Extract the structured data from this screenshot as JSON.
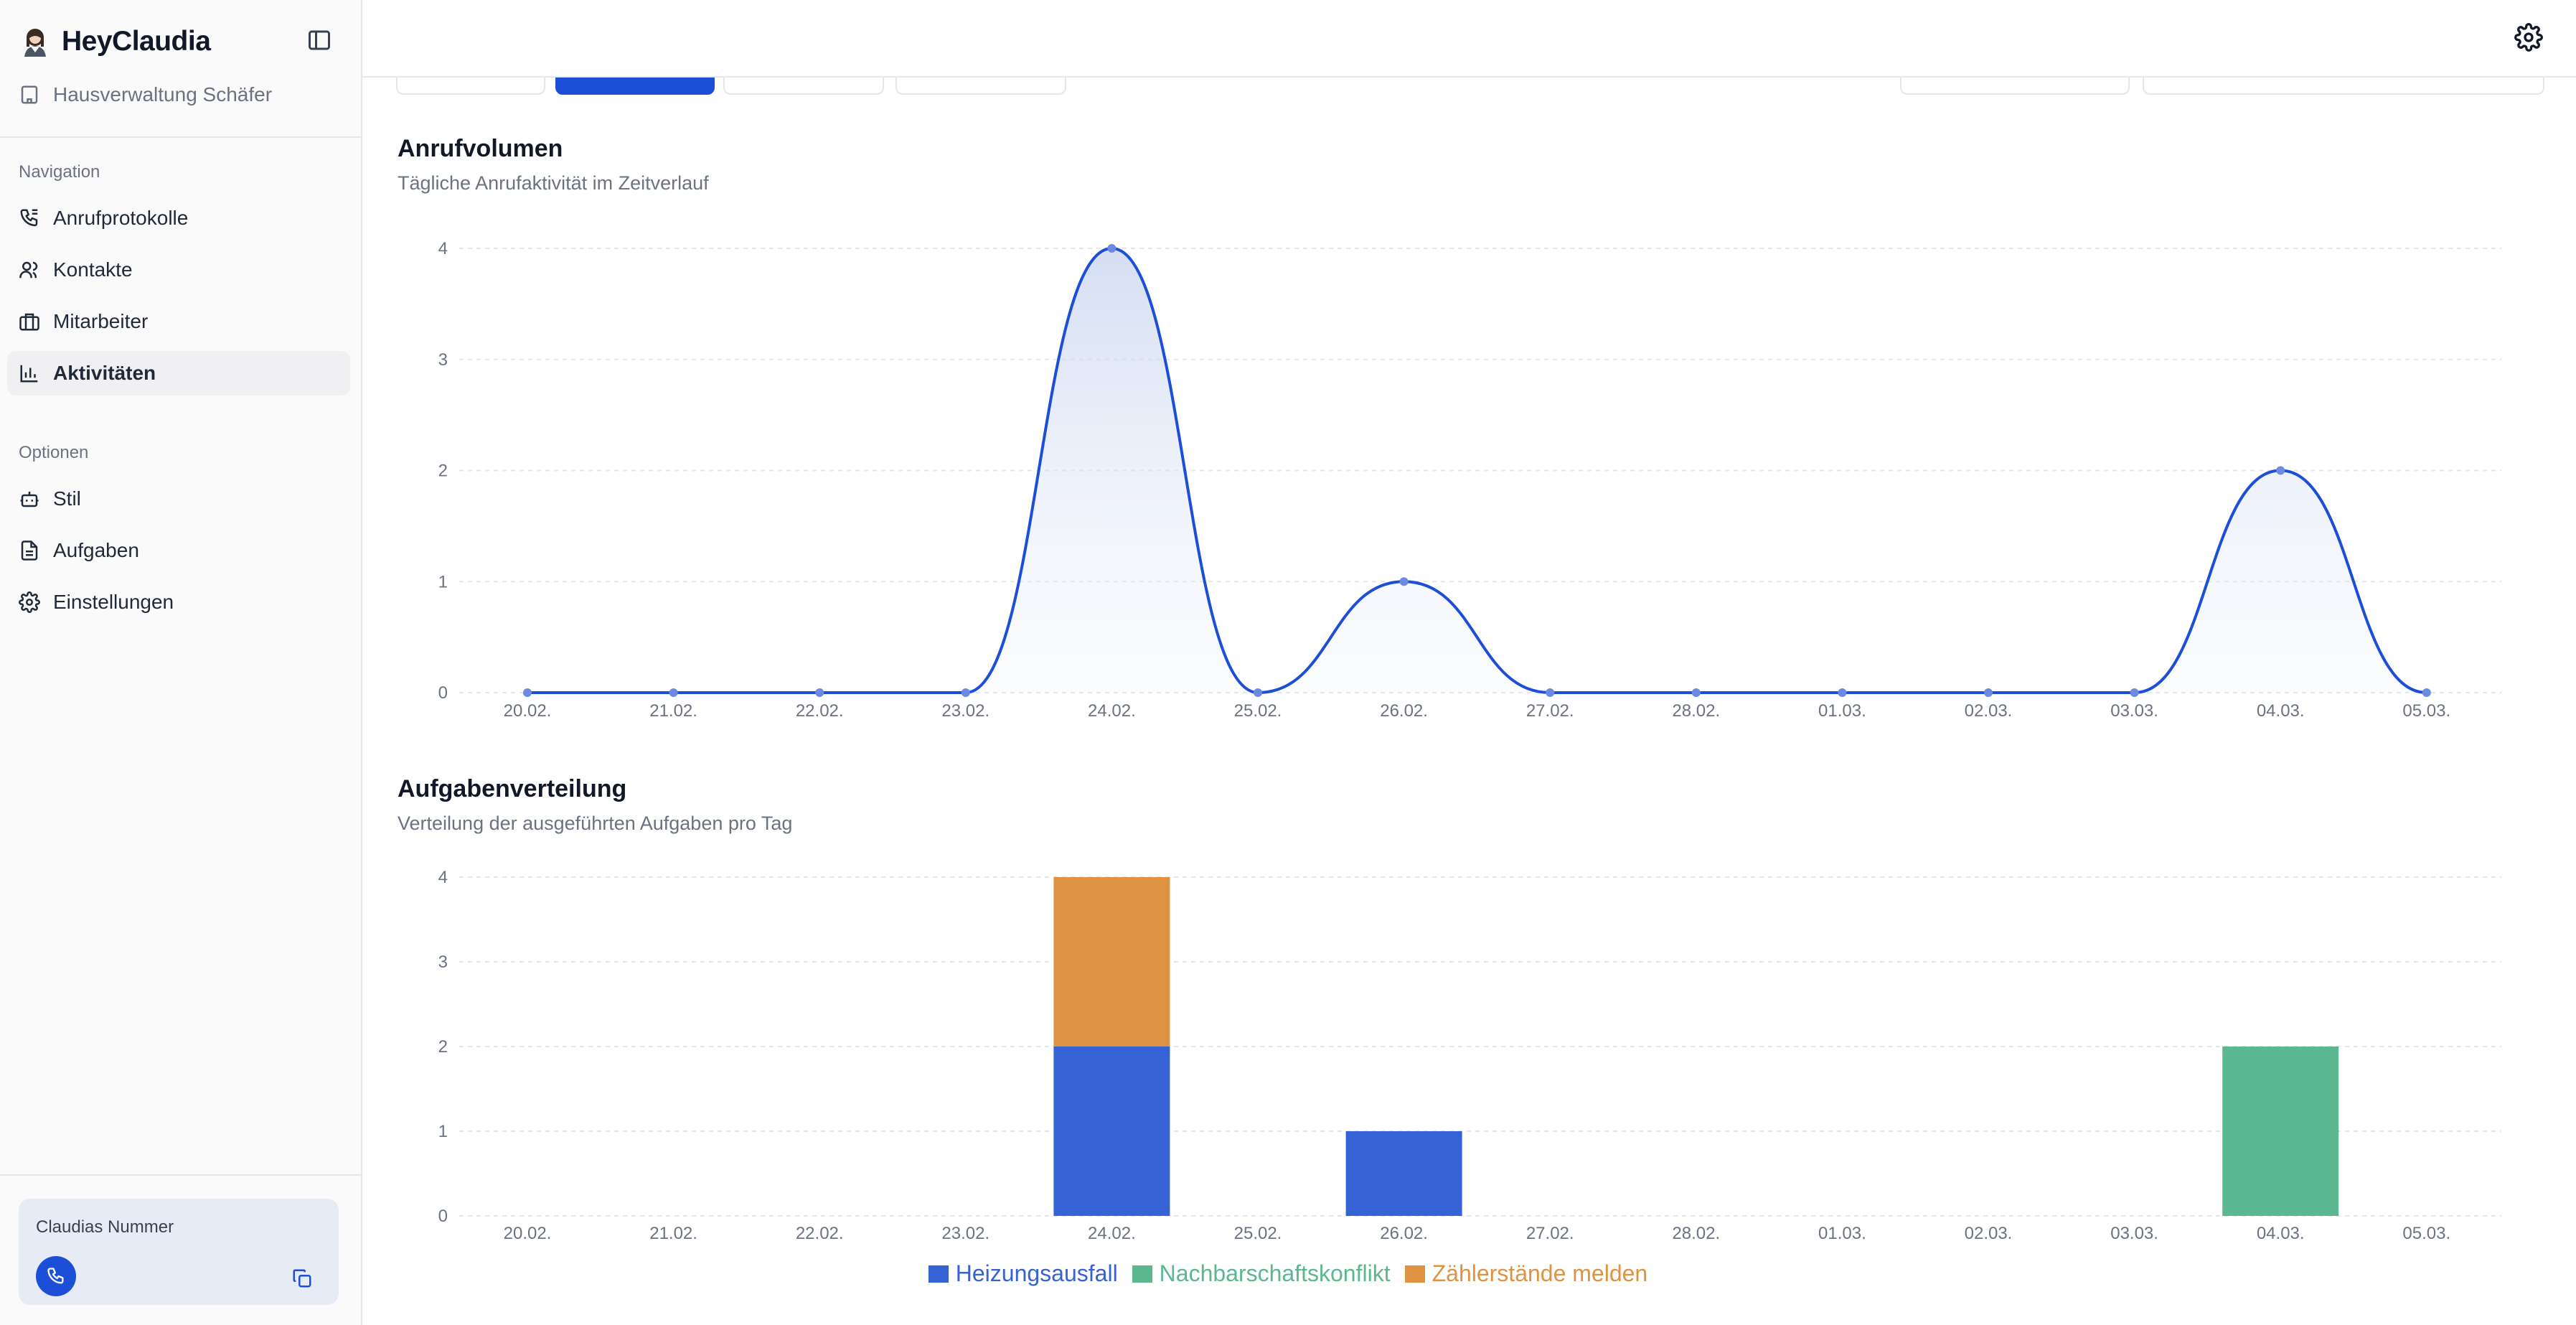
{
  "app": {
    "name": "HeyClaudia",
    "organization": "Hausverwaltung Schäfer"
  },
  "sidebar": {
    "navigation_label": "Navigation",
    "nav_items": [
      {
        "label": "Anrufprotokolle",
        "icon": "phone-log-icon"
      },
      {
        "label": "Kontakte",
        "icon": "users-icon"
      },
      {
        "label": "Mitarbeiter",
        "icon": "briefcase-icon"
      },
      {
        "label": "Aktivitäten",
        "icon": "bar-chart-icon",
        "active": true
      }
    ],
    "options_label": "Optionen",
    "option_items": [
      {
        "label": "Stil",
        "icon": "bot-icon"
      },
      {
        "label": "Aufgaben",
        "icon": "document-icon"
      },
      {
        "label": "Einstellungen",
        "icon": "gear-icon"
      }
    ],
    "number_card": {
      "label": "Claudias Nummer"
    }
  },
  "colors": {
    "accent": "#1d4ed8",
    "heizung": "#3563d6",
    "nachbar": "#5bb78f",
    "zaehler": "#de9343"
  },
  "chart_data": [
    {
      "type": "area",
      "title": "Anrufvolumen",
      "subtitle": "Tägliche Anrufaktivität im Zeitverlauf",
      "categories": [
        "20.02.",
        "21.02.",
        "22.02.",
        "23.02.",
        "24.02.",
        "25.02.",
        "26.02.",
        "27.02.",
        "28.02.",
        "01.03.",
        "02.03.",
        "03.03.",
        "04.03.",
        "05.03."
      ],
      "values": [
        0,
        0,
        0,
        0,
        4,
        0,
        1,
        0,
        0,
        0,
        0,
        0,
        2,
        0
      ],
      "ylim": [
        0,
        4
      ],
      "yticks": [
        0,
        1,
        2,
        3,
        4
      ],
      "grid": true
    },
    {
      "type": "bar",
      "stacked": true,
      "title": "Aufgabenverteilung",
      "subtitle": "Verteilung der ausgeführten Aufgaben pro Tag",
      "categories": [
        "20.02.",
        "21.02.",
        "22.02.",
        "23.02.",
        "24.02.",
        "25.02.",
        "26.02.",
        "27.02.",
        "28.02.",
        "01.03.",
        "02.03.",
        "03.03.",
        "04.03.",
        "05.03."
      ],
      "series": [
        {
          "name": "Heizungsausfall",
          "color": "#3563d6",
          "values": [
            0,
            0,
            0,
            0,
            2,
            0,
            1,
            0,
            0,
            0,
            0,
            0,
            0,
            0
          ]
        },
        {
          "name": "Nachbarschaftskonflikt",
          "color": "#5bb78f",
          "values": [
            0,
            0,
            0,
            0,
            0,
            0,
            0,
            0,
            0,
            0,
            0,
            0,
            2,
            0
          ]
        },
        {
          "name": "Zählerstände melden",
          "color": "#de9343",
          "values": [
            0,
            0,
            0,
            0,
            2,
            0,
            0,
            0,
            0,
            0,
            0,
            0,
            0,
            0
          ]
        }
      ],
      "ylim": [
        0,
        4
      ],
      "yticks": [
        0,
        1,
        2,
        3,
        4
      ],
      "grid": true,
      "legend": "bottom-center"
    }
  ]
}
